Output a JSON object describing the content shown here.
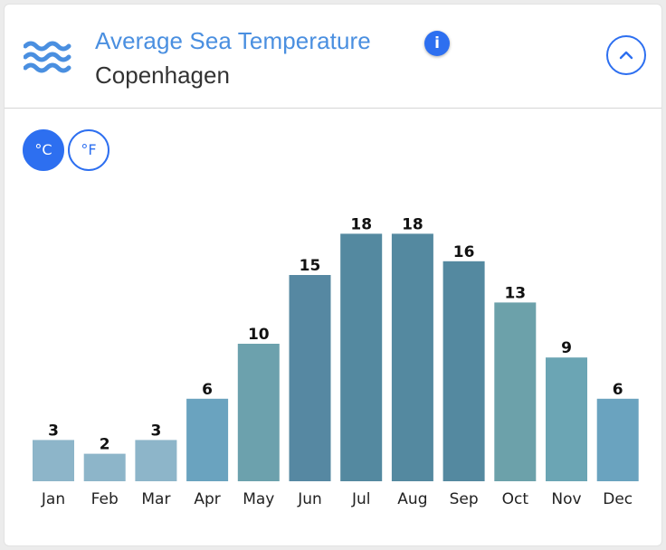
{
  "header": {
    "title": "Average Sea Temperature",
    "subtitle": "Copenhagen",
    "info_icon": "i"
  },
  "units": {
    "celsius_label": "°C",
    "fahrenheit_label": "°F",
    "selected": "°C"
  },
  "colors": {
    "title": "#4a8fe0",
    "accent": "#2d6ff0"
  },
  "chart_data": {
    "type": "bar",
    "title": "Average Sea Temperature",
    "xlabel": "",
    "ylabel": "",
    "unit": "°C",
    "categories": [
      "Jan",
      "Feb",
      "Mar",
      "Apr",
      "May",
      "Jun",
      "Jul",
      "Aug",
      "Sep",
      "Oct",
      "Nov",
      "Dec"
    ],
    "values": [
      3,
      2,
      3,
      6,
      10,
      15,
      18,
      18,
      16,
      13,
      9,
      6
    ],
    "bar_colors": [
      "#8db5c9",
      "#8db5c9",
      "#8db5c9",
      "#6aa3bf",
      "#6ca1ad",
      "#5688a2",
      "#5489a0",
      "#5489a0",
      "#5489a0",
      "#6ca1aa",
      "#6ba5b4",
      "#6aa3bf"
    ],
    "ylim": [
      0,
      18
    ],
    "grid": false,
    "legend": "none"
  }
}
